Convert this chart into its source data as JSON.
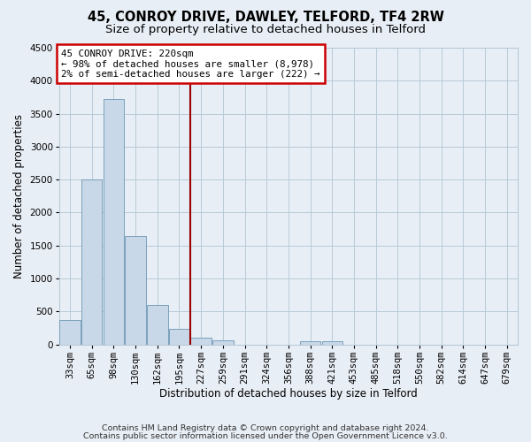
{
  "title": "45, CONROY DRIVE, DAWLEY, TELFORD, TF4 2RW",
  "subtitle": "Size of property relative to detached houses in Telford",
  "xlabel": "Distribution of detached houses by size in Telford",
  "ylabel": "Number of detached properties",
  "bar_labels": [
    "33sqm",
    "65sqm",
    "98sqm",
    "130sqm",
    "162sqm",
    "195sqm",
    "227sqm",
    "259sqm",
    "291sqm",
    "324sqm",
    "356sqm",
    "388sqm",
    "421sqm",
    "453sqm",
    "485sqm",
    "518sqm",
    "550sqm",
    "582sqm",
    "614sqm",
    "647sqm",
    "679sqm"
  ],
  "bar_values": [
    375,
    2500,
    3720,
    1640,
    600,
    240,
    100,
    60,
    0,
    0,
    0,
    50,
    50,
    0,
    0,
    0,
    0,
    0,
    0,
    0,
    0
  ],
  "bar_color": "#c8d8e8",
  "bar_edge_color": "#7aa0bb",
  "ylim": [
    0,
    4500
  ],
  "yticks": [
    0,
    500,
    1000,
    1500,
    2000,
    2500,
    3000,
    3500,
    4000,
    4500
  ],
  "vline_x_index": 6,
  "vline_color": "#990000",
  "annotation_line1": "45 CONROY DRIVE: 220sqm",
  "annotation_line2": "← 98% of detached houses are smaller (8,978)",
  "annotation_line3": "2% of semi-detached houses are larger (222) →",
  "annotation_box_color": "#ffffff",
  "annotation_box_edge": "#cc0000",
  "footnote1": "Contains HM Land Registry data © Crown copyright and database right 2024.",
  "footnote2": "Contains public sector information licensed under the Open Government Licence v3.0.",
  "bg_color": "#e8eef5",
  "plot_bg_color": "#e8eef5",
  "grid_color": "#b8cad8",
  "title_fontsize": 10.5,
  "subtitle_fontsize": 9.5,
  "axis_label_fontsize": 8.5,
  "tick_fontsize": 7.5,
  "annotation_fontsize": 7.8,
  "footnote_fontsize": 6.8
}
